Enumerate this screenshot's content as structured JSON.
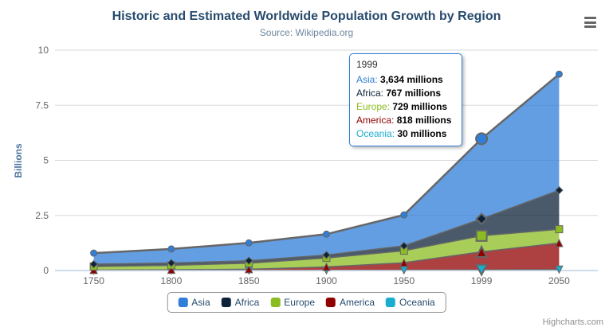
{
  "header": {
    "title": "Historic and Estimated Worldwide Population Growth by Region",
    "subtitle": "Source: Wikipedia.org"
  },
  "colors": {
    "asia": "#2f7ed8",
    "africa": "#0d233a",
    "europe": "#8bbc21",
    "america": "#910000",
    "oceania": "#1aadce",
    "series_line": "#666666",
    "grid_line": "#d8d8d8",
    "axis_line": "#c0d0e0",
    "axis_label": "#666666",
    "y_axis_title": "#4d759e",
    "title_text": "#274b6d",
    "subtitle_text": "#6d869f",
    "legend_text": "#274b6d",
    "legend_border": "#909090",
    "tooltip_border": "#2f7ed8",
    "credits_text": "#909090",
    "export_icon": "#666666"
  },
  "chart_data": {
    "type": "area",
    "stacking": "normal",
    "title": "Historic and Estimated Worldwide Population Growth by Region",
    "subtitle": "Source: Wikipedia.org",
    "categories": [
      "1750",
      "1800",
      "1850",
      "1900",
      "1950",
      "1999",
      "2050"
    ],
    "series": [
      {
        "name": "Asia",
        "color": "#2f7ed8",
        "marker": "circle",
        "values": [
          502,
          635,
          809,
          947,
          1402,
          3634,
          5268
        ]
      },
      {
        "name": "Africa",
        "color": "#0d233a",
        "marker": "diamond",
        "values": [
          106,
          107,
          111,
          133,
          221,
          767,
          1766
        ]
      },
      {
        "name": "Europe",
        "color": "#8bbc21",
        "marker": "square",
        "values": [
          163,
          203,
          276,
          408,
          547,
          729,
          628
        ]
      },
      {
        "name": "America",
        "color": "#910000",
        "marker": "triangle",
        "values": [
          18,
          31,
          54,
          156,
          339,
          818,
          1201
        ]
      },
      {
        "name": "Oceania",
        "color": "#1aadce",
        "marker": "triangle-down",
        "values": [
          2,
          2,
          2,
          6,
          13,
          30,
          46
        ]
      }
    ],
    "values_unit": "millions",
    "xlabel": "",
    "ylabel": "Billions",
    "yticks": [
      0,
      2.5,
      5,
      7.5,
      10
    ],
    "ylim": [
      0,
      10
    ],
    "grid": true,
    "legend_position": "bottom",
    "hover_category_index": 5,
    "fill_opacity": 0.75
  },
  "tooltip": {
    "header": "1999",
    "rows": [
      {
        "label": "Asia",
        "value": "3,634 millions",
        "color": "#2f7ed8"
      },
      {
        "label": "Africa",
        "value": "767 millions",
        "color": "#0d233a"
      },
      {
        "label": "Europe",
        "value": "729 millions",
        "color": "#8bbc21"
      },
      {
        "label": "America",
        "value": "818 millions",
        "color": "#910000"
      },
      {
        "label": "Oceania",
        "value": "30 millions",
        "color": "#1aadce"
      }
    ]
  },
  "legend": {
    "items": [
      {
        "label": "Asia",
        "color": "#2f7ed8"
      },
      {
        "label": "Africa",
        "color": "#0d233a"
      },
      {
        "label": "Europe",
        "color": "#8bbc21"
      },
      {
        "label": "America",
        "color": "#910000"
      },
      {
        "label": "Oceania",
        "color": "#1aadce"
      }
    ]
  },
  "credits": {
    "label": "Highcharts.com"
  }
}
